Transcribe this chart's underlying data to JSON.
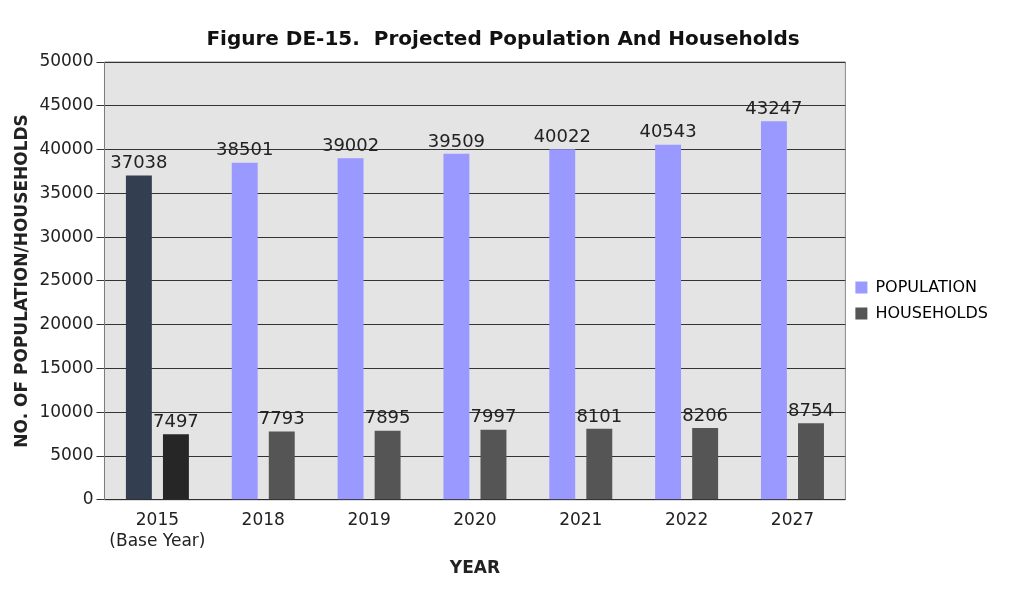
{
  "chart_data": {
    "type": "bar",
    "title": "Figure DE-15.  Projected Population And Households",
    "xlabel": "YEAR",
    "ylabel": "NO. OF POPULATION/HOUSEHOLDS",
    "categories": [
      "2015\n(Base Year)",
      "2018",
      "2019",
      "2020",
      "2021",
      "2022",
      "2027"
    ],
    "series": [
      {
        "name": "POPULATION",
        "color": "#9999ff",
        "colors": [
          "#333f50",
          "#9999ff",
          "#9999ff",
          "#9999ff",
          "#9999ff",
          "#9999ff",
          "#9999ff"
        ],
        "values": [
          37038,
          38501,
          39002,
          39509,
          40022,
          40543,
          43247
        ]
      },
      {
        "name": "HOUSEHOLDS",
        "color": "#555555",
        "colors": [
          "#262626",
          "#555555",
          "#555555",
          "#555555",
          "#555555",
          "#555555",
          "#555555"
        ],
        "values": [
          7497,
          7793,
          7895,
          7997,
          8101,
          8206,
          8754
        ]
      }
    ],
    "ylim": [
      0,
      50000
    ],
    "yticks": [
      0,
      5000,
      10000,
      15000,
      20000,
      25000,
      30000,
      35000,
      40000,
      45000,
      50000
    ],
    "grid": "y",
    "legend": "right",
    "data_labels": true
  }
}
